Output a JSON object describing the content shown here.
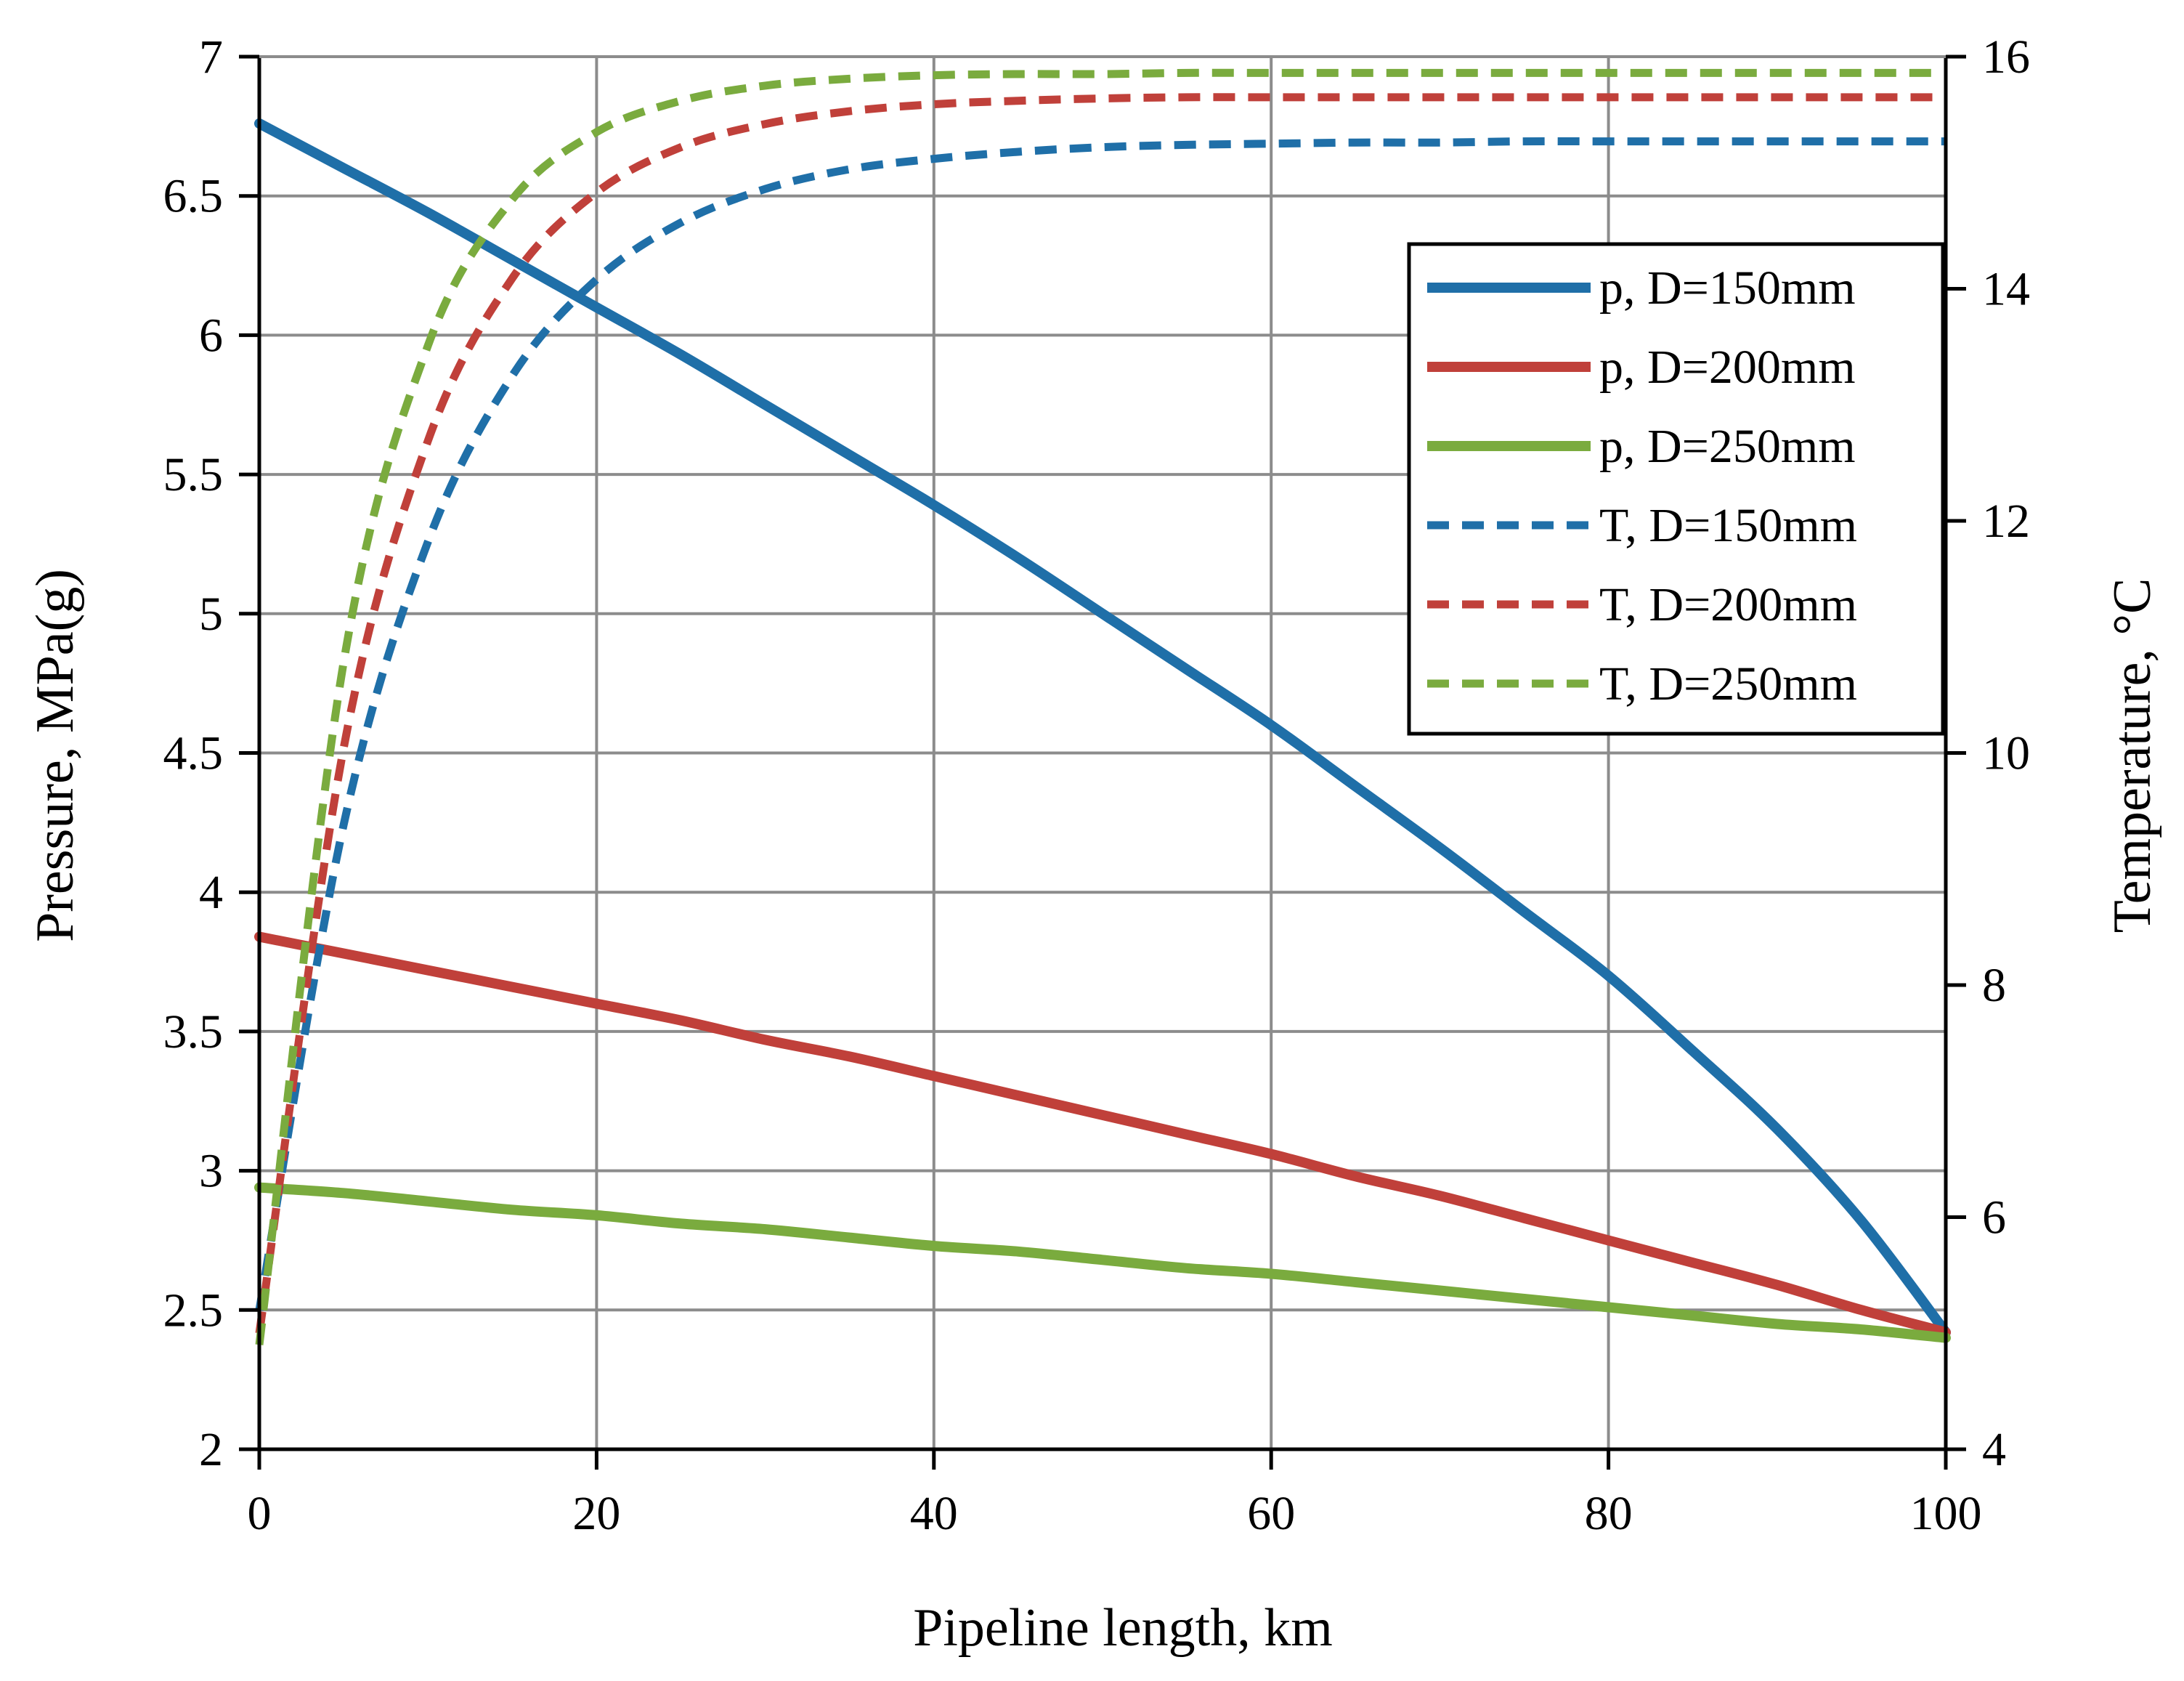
{
  "chart_data": {
    "type": "line",
    "xlabel": "Pipeline length, km",
    "ylabel": "Pressure, MPa(g)",
    "y2label": "Temperature, °C",
    "xlim": [
      0,
      100
    ],
    "ylim": [
      2,
      7
    ],
    "y2lim": [
      4,
      16
    ],
    "xticks": [
      0,
      20,
      40,
      60,
      80,
      100
    ],
    "yticks": [
      2,
      2.5,
      3,
      3.5,
      4,
      4.5,
      5,
      5.5,
      6,
      6.5,
      7
    ],
    "y2ticks": [
      4,
      6,
      8,
      10,
      12,
      14,
      16
    ],
    "grid": true,
    "legend_position": "upper-right",
    "x": [
      0,
      5,
      10,
      15,
      20,
      25,
      30,
      35,
      40,
      45,
      50,
      55,
      60,
      65,
      70,
      75,
      80,
      85,
      90,
      95,
      100
    ],
    "series": [
      {
        "name": "p, D=150mm",
        "axis": "left",
        "style": "solid",
        "color": "#1f6fa8",
        "values": [
          6.76,
          6.6,
          6.44,
          6.27,
          6.1,
          5.93,
          5.75,
          5.57,
          5.39,
          5.2,
          5.0,
          4.8,
          4.6,
          4.38,
          4.16,
          3.93,
          3.7,
          3.43,
          3.15,
          2.82,
          2.42
        ]
      },
      {
        "name": "p, D=200mm",
        "axis": "left",
        "style": "solid",
        "color": "#c0403a",
        "values": [
          3.84,
          3.78,
          3.72,
          3.66,
          3.6,
          3.54,
          3.47,
          3.41,
          3.34,
          3.27,
          3.2,
          3.13,
          3.06,
          2.98,
          2.91,
          2.83,
          2.75,
          2.67,
          2.59,
          2.5,
          2.42
        ]
      },
      {
        "name": "p, D=250mm",
        "axis": "left",
        "style": "solid",
        "color": "#7aab3e",
        "values": [
          2.94,
          2.92,
          2.89,
          2.86,
          2.84,
          2.81,
          2.79,
          2.76,
          2.73,
          2.71,
          2.68,
          2.65,
          2.63,
          2.6,
          2.57,
          2.54,
          2.51,
          2.48,
          2.45,
          2.43,
          2.4
        ]
      },
      {
        "name": "T, D=150mm",
        "axis": "right",
        "style": "dashed",
        "color": "#1f6fa8",
        "values": [
          5.2,
          9.38,
          11.82,
          13.25,
          14.08,
          14.57,
          14.86,
          15.03,
          15.12,
          15.18,
          15.22,
          15.24,
          15.25,
          15.26,
          15.26,
          15.27,
          15.27,
          15.27,
          15.27,
          15.27,
          15.27
        ]
      },
      {
        "name": "T, D=200mm",
        "axis": "right",
        "style": "dashed",
        "color": "#c0403a",
        "values": [
          5.0,
          10.04,
          12.69,
          14.09,
          14.83,
          15.22,
          15.42,
          15.53,
          15.59,
          15.62,
          15.64,
          15.65,
          15.65,
          15.65,
          15.65,
          15.65,
          15.65,
          15.65,
          15.65,
          15.65,
          15.65
        ]
      },
      {
        "name": "T, D=250mm",
        "axis": "right",
        "style": "dashed",
        "color": "#7aab3e",
        "values": [
          4.9,
          10.78,
          13.51,
          14.77,
          15.35,
          15.62,
          15.75,
          15.81,
          15.84,
          15.85,
          15.85,
          15.86,
          15.86,
          15.86,
          15.86,
          15.86,
          15.86,
          15.86,
          15.86,
          15.86,
          15.86
        ]
      }
    ]
  }
}
